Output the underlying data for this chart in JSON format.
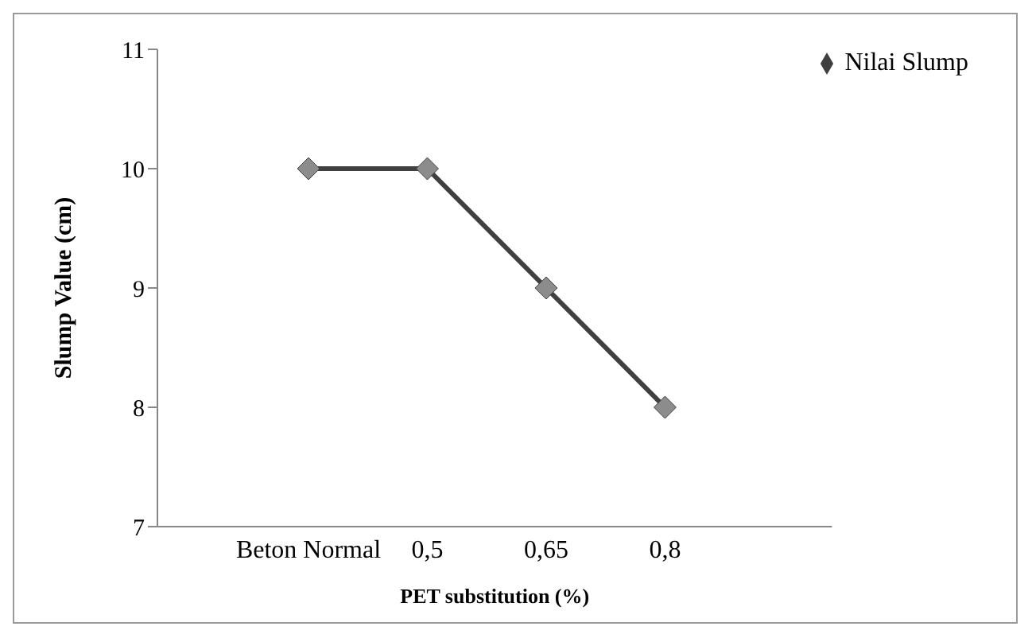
{
  "chart_data": {
    "type": "line",
    "xlabel": "PET substitution (%)",
    "ylabel": "Slump Value (cm)",
    "categories": [
      "Beton Normal",
      "0,5",
      "0,65",
      "0,8"
    ],
    "series": [
      {
        "name": "Nilai Slump",
        "color": "#404040",
        "values": [
          10,
          10,
          9,
          8
        ]
      }
    ],
    "ylim": [
      7,
      11
    ],
    "yticks": [
      7,
      8,
      9,
      10,
      11
    ],
    "legend": "top right",
    "marker": "diamond",
    "line_style": "solid"
  }
}
